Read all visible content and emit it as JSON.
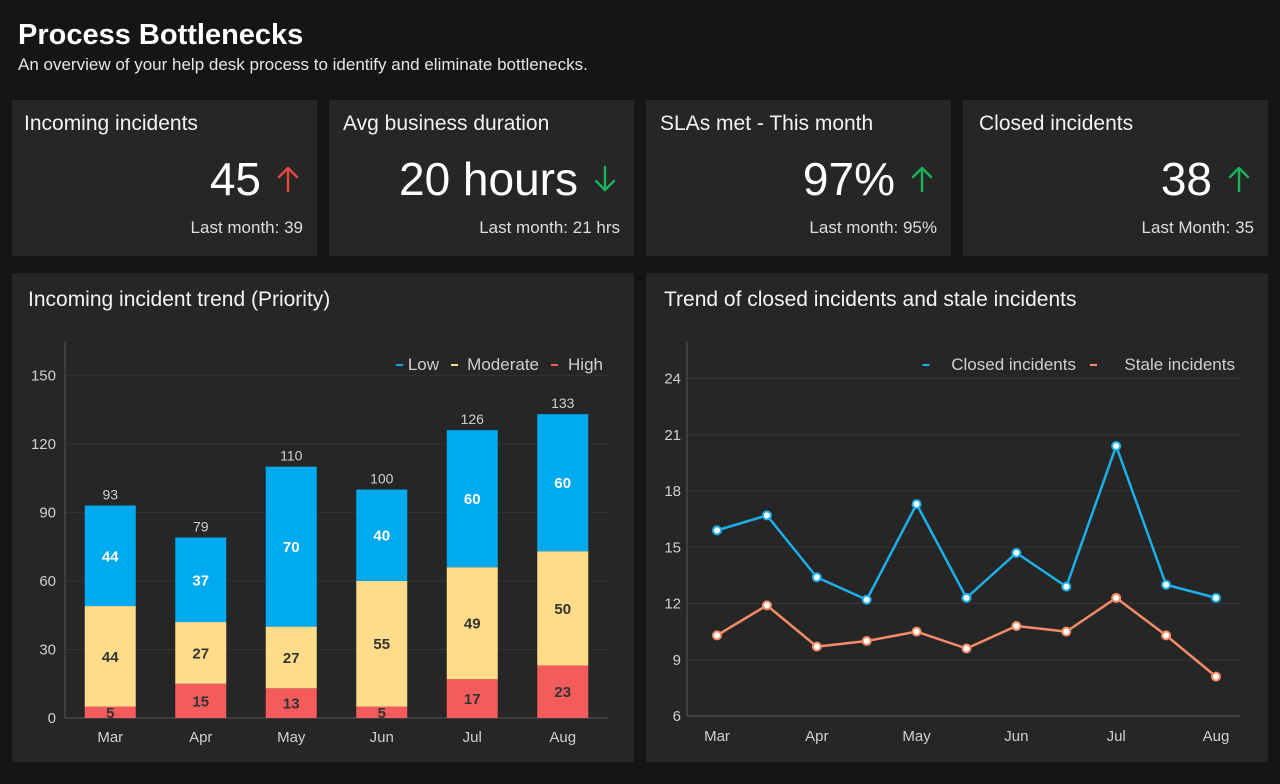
{
  "header": {
    "title": "Process Bottlenecks",
    "subtitle": "An overview of your help desk process to identify and eliminate bottlenecks."
  },
  "kpis": [
    {
      "label": "Incoming incidents",
      "value": "45",
      "trend": "up",
      "color": "#e8473f",
      "footnote": "Last month: 39"
    },
    {
      "label": "Avg business duration",
      "value": "20 hours",
      "trend": "down",
      "color": "#19b35a",
      "footnote": "Last month: 21 hrs"
    },
    {
      "label": "SLAs met - This month",
      "value": "97%",
      "trend": "up",
      "color": "#19b35a",
      "footnote": "Last month: 95%"
    },
    {
      "label": "Closed incidents",
      "value": "38",
      "trend": "up",
      "color": "#19b35a",
      "footnote": "Last Month: 35"
    }
  ],
  "panels": {
    "left_title": "Incoming incident trend (Priority)",
    "right_title": "Trend of closed incidents and stale incidents"
  },
  "chart_data": [
    {
      "type": "bar",
      "stacked": true,
      "title": "Incoming incident trend (Priority)",
      "categories": [
        "Mar",
        "Apr",
        "May",
        "Jun",
        "Jul",
        "Aug"
      ],
      "series": [
        {
          "name": "High",
          "values": [
            5,
            15,
            13,
            5,
            17,
            23
          ],
          "color": "#f45b5b"
        },
        {
          "name": "Moderate",
          "values": [
            44,
            27,
            27,
            55,
            49,
            50
          ],
          "color": "#fedc8a"
        },
        {
          "name": "Low",
          "values": [
            44,
            37,
            70,
            40,
            60,
            60
          ],
          "color": "#00aaee"
        }
      ],
      "totals": [
        93,
        79,
        110,
        100,
        126,
        133
      ],
      "yticks": [
        0,
        30,
        60,
        90,
        120,
        150
      ],
      "ylim": [
        0,
        165
      ],
      "grid": true,
      "legend": "top-right",
      "legend_order": [
        "Low",
        "Moderate",
        "High"
      ]
    },
    {
      "type": "line",
      "title": "Trend of closed incidents and stale incidents",
      "x": [
        "Mar",
        "",
        "Apr",
        "",
        "May",
        "",
        "Jun",
        "",
        "Jul",
        "",
        "Aug"
      ],
      "tick_labels": [
        "Mar",
        "Apr",
        "May",
        "Jun",
        "Jul",
        "Aug"
      ],
      "series": [
        {
          "name": "Closed incidents",
          "values": [
            15.9,
            16.7,
            13.4,
            12.2,
            17.3,
            12.3,
            14.7,
            12.9,
            20.4,
            13.0,
            12.3
          ],
          "color": "#1bb0ea"
        },
        {
          "name": "Stale incidents",
          "values": [
            10.3,
            11.9,
            9.7,
            10.0,
            10.5,
            9.6,
            10.8,
            10.5,
            12.3,
            10.3,
            8.1
          ],
          "color": "#f58c68"
        }
      ],
      "yticks": [
        6,
        9,
        12,
        15,
        18,
        21,
        24
      ],
      "ylim": [
        6,
        26
      ],
      "grid": true,
      "legend": "top-right"
    }
  ]
}
